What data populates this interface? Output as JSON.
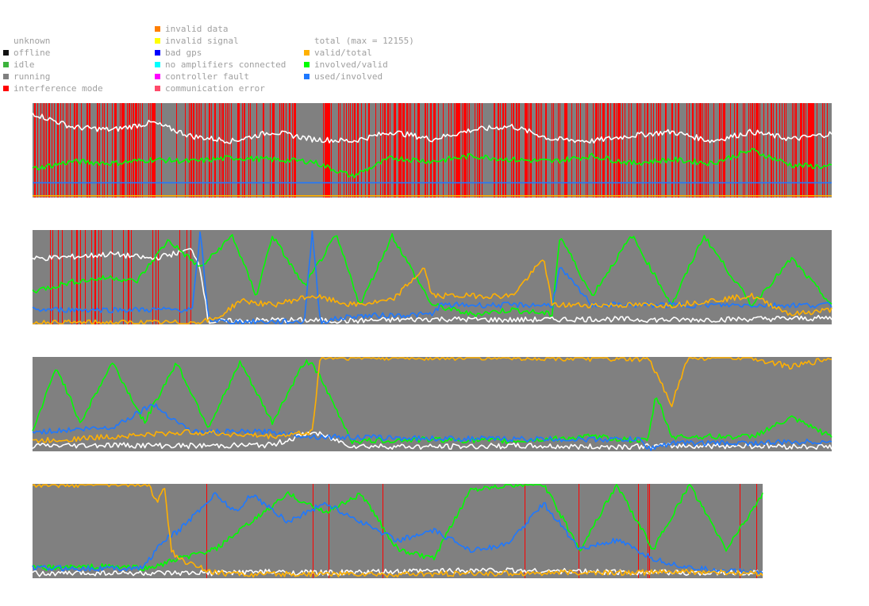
{
  "legend": {
    "col1": [
      {
        "label": "unknown",
        "color": ""
      },
      {
        "label": "offline",
        "color": "#111111"
      },
      {
        "label": "idle",
        "color": "#3cb33c"
      },
      {
        "label": "running",
        "color": "#808080"
      },
      {
        "label": "interference mode",
        "color": "#ff0000"
      }
    ],
    "col2": [
      {
        "label": "invalid data",
        "color": "#ff7f00"
      },
      {
        "label": "invalid signal",
        "color": "#ffff00"
      },
      {
        "label": "bad gps",
        "color": "#0000ff"
      },
      {
        "label": "no amplifiers connected",
        "color": "#00ffff"
      },
      {
        "label": "controller fault",
        "color": "#ff00ff"
      },
      {
        "label": "communication error",
        "color": "#ff4a6a"
      }
    ],
    "col3": [
      {
        "label": "total (max = 12155)",
        "color": ""
      },
      {
        "label": "valid/total",
        "color": "#ffb000"
      },
      {
        "label": "involved/valid",
        "color": "#00ff00"
      },
      {
        "label": "used/involved",
        "color": "#1e78ff"
      }
    ]
  },
  "chart_data": [
    {
      "type": "line",
      "panel": 1,
      "ylim": [
        0,
        1
      ],
      "background": "running",
      "interference_coverage": 0.6,
      "series": [
        {
          "name": "total (max = 12155)",
          "color": "#ffffff",
          "x": [
            0,
            0.05,
            0.1,
            0.15,
            0.2,
            0.25,
            0.3,
            0.35,
            0.4,
            0.45,
            0.5,
            0.55,
            0.6,
            0.65,
            0.7,
            0.75,
            0.8,
            0.85,
            0.9,
            0.95,
            1
          ],
          "values": [
            0.9,
            0.75,
            0.72,
            0.8,
            0.65,
            0.6,
            0.7,
            0.62,
            0.6,
            0.7,
            0.62,
            0.72,
            0.76,
            0.62,
            0.6,
            0.66,
            0.7,
            0.6,
            0.7,
            0.62,
            0.68
          ]
        },
        {
          "name": "involved/valid",
          "color": "#00ff00",
          "x": [
            0,
            0.05,
            0.1,
            0.15,
            0.2,
            0.25,
            0.3,
            0.35,
            0.4,
            0.45,
            0.5,
            0.55,
            0.6,
            0.65,
            0.7,
            0.75,
            0.8,
            0.85,
            0.9,
            0.95,
            1
          ],
          "values": [
            0.3,
            0.38,
            0.36,
            0.4,
            0.38,
            0.42,
            0.4,
            0.38,
            0.22,
            0.42,
            0.38,
            0.44,
            0.4,
            0.38,
            0.44,
            0.36,
            0.4,
            0.36,
            0.5,
            0.34,
            0.32
          ]
        },
        {
          "name": "used/involved",
          "color": "#1e78ff",
          "x": [
            0,
            1
          ],
          "values": [
            0.15,
            0.15
          ]
        },
        {
          "name": "valid/total",
          "color": "#ffb000",
          "x": [
            0,
            1
          ],
          "values": [
            0.01,
            0.01
          ]
        }
      ]
    },
    {
      "type": "line",
      "panel": 2,
      "ylim": [
        0,
        1
      ],
      "background": "running",
      "interference_coverage": 0.21,
      "series": [
        {
          "name": "total (max = 12155)",
          "color": "#ffffff",
          "x": [
            0,
            0.05,
            0.1,
            0.15,
            0.2,
            0.21,
            0.22,
            0.3,
            0.4,
            0.5,
            0.6,
            0.7,
            0.8,
            0.9,
            1
          ],
          "values": [
            0.7,
            0.72,
            0.75,
            0.7,
            0.8,
            0.6,
            0.02,
            0.04,
            0.03,
            0.05,
            0.04,
            0.05,
            0.04,
            0.05,
            0.06
          ]
        },
        {
          "name": "involved/valid",
          "color": "#00ff00",
          "x": [
            0,
            0.05,
            0.1,
            0.13,
            0.17,
            0.21,
            0.25,
            0.28,
            0.3,
            0.34,
            0.38,
            0.41,
            0.45,
            0.5,
            0.55,
            0.6,
            0.65,
            0.66,
            0.7,
            0.75,
            0.8,
            0.84,
            0.9,
            0.95,
            1
          ],
          "values": [
            0.35,
            0.45,
            0.5,
            0.45,
            0.9,
            0.6,
            0.95,
            0.3,
            0.95,
            0.4,
            0.95,
            0.2,
            0.95,
            0.2,
            0.1,
            0.15,
            0.1,
            0.95,
            0.3,
            0.95,
            0.2,
            0.95,
            0.2,
            0.7,
            0.2
          ]
        },
        {
          "name": "used/involved",
          "color": "#1e78ff",
          "x": [
            0,
            0.2,
            0.21,
            0.22,
            0.24,
            0.3,
            0.34,
            0.35,
            0.36,
            0.4,
            0.5,
            0.51,
            0.6,
            0.65,
            0.66,
            0.7,
            0.8,
            0.9,
            1
          ],
          "values": [
            0.15,
            0.15,
            1.0,
            0.05,
            0.02,
            0.02,
            0.02,
            1.0,
            0.02,
            0.08,
            0.1,
            0.2,
            0.2,
            0.2,
            0.6,
            0.2,
            0.2,
            0.2,
            0.2
          ]
        },
        {
          "name": "valid/total",
          "color": "#ffb000",
          "x": [
            0,
            0.2,
            0.23,
            0.26,
            0.3,
            0.35,
            0.4,
            0.45,
            0.49,
            0.5,
            0.55,
            0.6,
            0.64,
            0.65,
            0.7,
            0.8,
            0.9,
            0.95,
            1
          ],
          "values": [
            0.01,
            0.01,
            0.05,
            0.25,
            0.2,
            0.3,
            0.2,
            0.25,
            0.6,
            0.3,
            0.3,
            0.3,
            0.7,
            0.2,
            0.2,
            0.2,
            0.3,
            0.1,
            0.15
          ]
        }
      ]
    },
    {
      "type": "line",
      "panel": 3,
      "ylim": [
        0,
        1
      ],
      "background": "running",
      "interference_coverage": 0,
      "series": [
        {
          "name": "total (max = 12155)",
          "color": "#ffffff",
          "x": [
            0,
            0.1,
            0.2,
            0.3,
            0.35,
            0.4,
            0.5,
            0.6,
            0.7,
            0.8,
            0.9,
            1
          ],
          "values": [
            0.05,
            0.06,
            0.05,
            0.06,
            0.2,
            0.05,
            0.04,
            0.05,
            0.04,
            0.05,
            0.05,
            0.04
          ]
        },
        {
          "name": "involved/valid",
          "color": "#00ff00",
          "x": [
            0,
            0.03,
            0.06,
            0.1,
            0.14,
            0.18,
            0.22,
            0.26,
            0.3,
            0.34,
            0.35,
            0.4,
            0.5,
            0.6,
            0.7,
            0.77,
            0.78,
            0.8,
            0.9,
            0.95,
            1
          ],
          "values": [
            0.2,
            0.9,
            0.3,
            0.95,
            0.3,
            0.95,
            0.25,
            0.95,
            0.3,
            0.95,
            0.95,
            0.1,
            0.12,
            0.1,
            0.15,
            0.1,
            0.6,
            0.15,
            0.15,
            0.35,
            0.15
          ]
        },
        {
          "name": "used/involved",
          "color": "#1e78ff",
          "x": [
            0,
            0.1,
            0.15,
            0.2,
            0.3,
            0.35,
            0.36,
            0.5,
            0.7,
            0.76,
            0.77,
            0.8,
            0.9,
            1
          ],
          "values": [
            0.2,
            0.25,
            0.5,
            0.2,
            0.2,
            0.15,
            0.15,
            0.13,
            0.12,
            0.12,
            0.02,
            0.08,
            0.08,
            0.1
          ]
        },
        {
          "name": "valid/total",
          "color": "#ffb000",
          "x": [
            0,
            0.1,
            0.2,
            0.3,
            0.35,
            0.36,
            0.4,
            0.6,
            0.7,
            0.76,
            0.77,
            0.8,
            0.82,
            0.9,
            0.95,
            1
          ],
          "values": [
            0.1,
            0.15,
            0.2,
            0.15,
            0.2,
            1.0,
            1.0,
            1.0,
            0.99,
            0.98,
            1.0,
            0.5,
            1.0,
            1.0,
            0.9,
            1.0
          ]
        }
      ]
    },
    {
      "type": "line",
      "panel": 4,
      "ylim": [
        0,
        1
      ],
      "background": "running",
      "interference_coverage": 0.01,
      "series": [
        {
          "name": "total (max = 12155)",
          "color": "#ffffff",
          "x": [
            0,
            0.1,
            0.2,
            0.3,
            0.4,
            0.5,
            0.6,
            0.7,
            0.8,
            0.9,
            1
          ],
          "values": [
            0.04,
            0.05,
            0.04,
            0.06,
            0.05,
            0.06,
            0.08,
            0.07,
            0.06,
            0.05,
            0.05
          ]
        },
        {
          "name": "involved/valid",
          "color": "#00ff00",
          "x": [
            0,
            0.1,
            0.16,
            0.2,
            0.25,
            0.3,
            0.35,
            0.4,
            0.45,
            0.5,
            0.55,
            0.6,
            0.65,
            0.7,
            0.75,
            0.8,
            0.85,
            0.9,
            0.95,
            1
          ],
          "values": [
            0.1,
            0.12,
            0.1,
            0.2,
            0.3,
            0.6,
            0.9,
            0.7,
            0.9,
            0.3,
            0.2,
            0.95,
            1.0,
            1.0,
            0.3,
            1.0,
            0.3,
            1.0,
            0.3,
            0.9
          ]
        },
        {
          "name": "used/involved",
          "color": "#1e78ff",
          "x": [
            0,
            0.15,
            0.18,
            0.2,
            0.25,
            0.28,
            0.3,
            0.35,
            0.4,
            0.45,
            0.5,
            0.55,
            0.6,
            0.65,
            0.7,
            0.75,
            0.8,
            0.85,
            0.9,
            1
          ],
          "values": [
            0.1,
            0.1,
            0.4,
            0.5,
            0.9,
            0.7,
            0.9,
            0.6,
            0.8,
            0.6,
            0.4,
            0.5,
            0.3,
            0.35,
            0.8,
            0.3,
            0.4,
            0.2,
            0.1,
            0.05
          ]
        },
        {
          "name": "valid/total",
          "color": "#ffb000",
          "x": [
            0,
            0.16,
            0.17,
            0.18,
            0.19,
            0.2,
            0.25,
            0.3,
            0.4,
            0.5,
            0.6,
            0.7,
            0.8,
            0.9,
            1
          ],
          "values": [
            1.0,
            1.0,
            0.8,
            1.0,
            0.3,
            0.2,
            0.05,
            0.03,
            0.04,
            0.03,
            0.04,
            0.05,
            0.05,
            0.06,
            0.04
          ]
        }
      ]
    }
  ]
}
